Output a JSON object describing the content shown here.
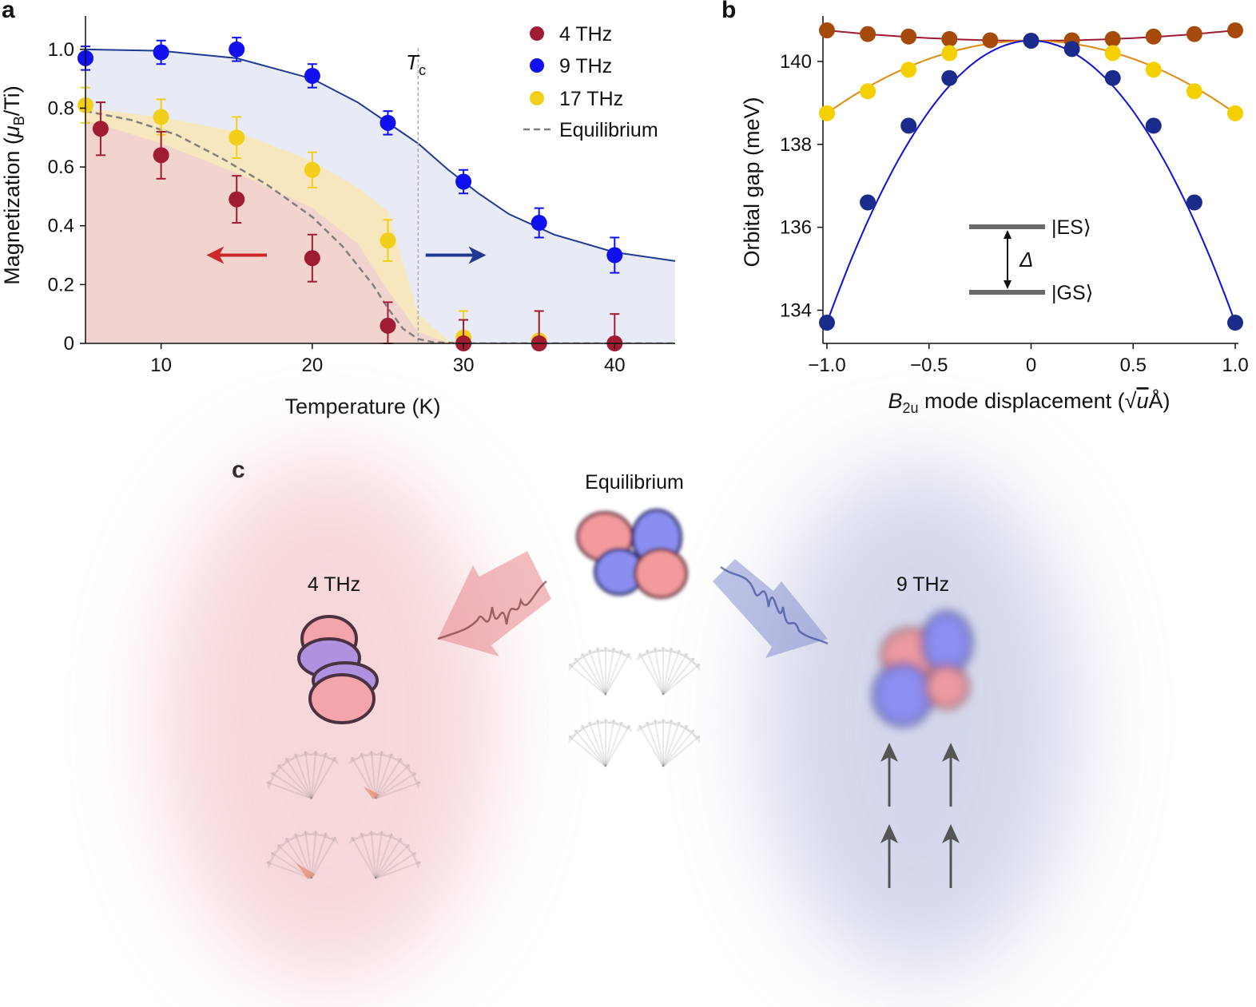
{
  "panels": {
    "a": "a",
    "b": "b",
    "c": "c"
  },
  "chart_data": [
    {
      "type": "scatter",
      "id": "a",
      "xlabel": "Temperature (K)",
      "ylabel_parts": {
        "pre": "Magnetization (",
        "mu": "μ",
        "sub": "B",
        "post": "/Ti)"
      },
      "xlim": [
        5,
        44
      ],
      "ylim": [
        0,
        1.1
      ],
      "xticks": [
        10,
        20,
        30,
        40
      ],
      "yticks": [
        {
          "v": 0,
          "label": "0"
        },
        {
          "v": 0.2,
          "label": "0.2"
        },
        {
          "v": 0.4,
          "label": "0.4"
        },
        {
          "v": 0.6,
          "label": "0.6"
        },
        {
          "v": 0.8,
          "label": "0.8"
        },
        {
          "v": 1.0,
          "label": "1.0"
        }
      ],
      "tc_label": {
        "main": "T",
        "sub": "c"
      },
      "tc_value": 27,
      "series": [
        {
          "name": "4 THz",
          "color": "#a01c32",
          "x": [
            6,
            10,
            15,
            20,
            25,
            30,
            35,
            40
          ],
          "y": [
            0.73,
            0.64,
            0.49,
            0.29,
            0.06,
            0.0,
            0.0,
            0.0
          ],
          "err": [
            0.09,
            0.08,
            0.08,
            0.08,
            0.08,
            0.08,
            0.11,
            0.1
          ]
        },
        {
          "name": "9 THz",
          "color": "#1010ee",
          "x": [
            5,
            10,
            15,
            20,
            25,
            30,
            35,
            40
          ],
          "y": [
            0.97,
            0.99,
            1.0,
            0.91,
            0.75,
            0.55,
            0.41,
            0.3
          ],
          "err": [
            0.04,
            0.04,
            0.04,
            0.04,
            0.04,
            0.04,
            0.05,
            0.06
          ]
        },
        {
          "name": "17 THz",
          "color": "#f2cf1a",
          "x": [
            5,
            10,
            15,
            20,
            25,
            30,
            35
          ],
          "y": [
            0.81,
            0.77,
            0.7,
            0.59,
            0.35,
            0.02,
            0.01
          ],
          "err": [
            0.06,
            0.06,
            0.07,
            0.06,
            0.07,
            0.09,
            0.1
          ]
        },
        {
          "name": "Equilibrium",
          "style": "dashed",
          "color": "#808080",
          "x": [
            5,
            8,
            11,
            14,
            17,
            20,
            22,
            24,
            25,
            26,
            27,
            28,
            30,
            33,
            44
          ],
          "y": [
            0.79,
            0.76,
            0.71,
            0.63,
            0.54,
            0.43,
            0.33,
            0.2,
            0.12,
            0.05,
            0.015,
            0.004,
            0.0,
            0.0,
            0.0
          ]
        }
      ],
      "fit_9thz": {
        "x": [
          5,
          10,
          15,
          20,
          23,
          25,
          27,
          29,
          31,
          33,
          36,
          40,
          44
        ],
        "y": [
          1.0,
          0.995,
          0.97,
          0.9,
          0.82,
          0.75,
          0.68,
          0.59,
          0.51,
          0.44,
          0.37,
          0.31,
          0.28
        ]
      },
      "band_17thz": {
        "x": [
          5,
          10,
          15,
          20,
          23,
          25,
          27,
          29,
          31,
          35,
          44
        ],
        "upper": [
          0.8,
          0.77,
          0.72,
          0.62,
          0.53,
          0.45,
          0.1,
          0.01,
          0.0,
          0.0,
          0.0
        ]
      },
      "band_4thz": {
        "x": [
          5,
          10,
          15,
          20,
          23,
          25,
          27,
          29,
          44
        ],
        "upper": [
          0.76,
          0.68,
          0.58,
          0.46,
          0.34,
          0.18,
          0.04,
          0.0,
          0.0
        ]
      },
      "arrows": [
        {
          "direction": "left",
          "color": "#cc2a2a",
          "x": [
            17,
            13
          ],
          "y": 0.3
        },
        {
          "direction": "right",
          "color": "#1f3a93",
          "x": [
            27.5,
            31.5
          ],
          "y": 0.3
        }
      ]
    },
    {
      "type": "line",
      "id": "b",
      "xlabel_parts": {
        "main": "B",
        "sub": "2u",
        "rest": " mode displacement (",
        "root": "√",
        "u": "u",
        "post": "Å)"
      },
      "ylabel": "Orbital gap (meV)",
      "xlim": [
        -1.0,
        1.0
      ],
      "ylim": [
        133.2,
        141.0
      ],
      "xticks": [
        {
          "v": -1.0,
          "label": "−1.0"
        },
        {
          "v": -0.5,
          "label": "−0.5"
        },
        {
          "v": 0,
          "label": "0"
        },
        {
          "v": 0.5,
          "label": "0.5"
        },
        {
          "v": 1.0,
          "label": "1.0"
        }
      ],
      "yticks": [
        134,
        136,
        138,
        140
      ],
      "series": [
        {
          "name": "4 THz",
          "color": "#a64a0c",
          "line": "#9e1b32",
          "x": [
            -1.0,
            -0.8,
            -0.6,
            -0.4,
            -0.2,
            0,
            0.2,
            0.4,
            0.6,
            0.8,
            1.0
          ],
          "y": [
            140.75,
            140.66,
            140.6,
            140.54,
            140.51,
            140.5,
            140.51,
            140.54,
            140.6,
            140.66,
            140.75
          ]
        },
        {
          "name": "17 THz",
          "color": "#f5d000",
          "line": "#e08a10",
          "x": [
            -1.0,
            -0.8,
            -0.6,
            -0.4,
            0,
            0.4,
            0.6,
            0.8,
            1.0
          ],
          "y": [
            138.75,
            139.28,
            139.8,
            140.2,
            140.5,
            140.2,
            139.8,
            139.28,
            138.75
          ]
        },
        {
          "name": "9 THz",
          "color": "#1a2b8c",
          "line": "#1010dd",
          "x": [
            -1.0,
            -0.8,
            -0.6,
            -0.4,
            0,
            0.2,
            0.4,
            0.6,
            0.8,
            1.0
          ],
          "y": [
            133.7,
            136.6,
            138.45,
            139.6,
            140.5,
            140.3,
            139.6,
            138.45,
            136.6,
            133.7
          ]
        }
      ],
      "inset": {
        "es": "|ES⟩",
        "gs": "|GS⟩",
        "delta": "Δ"
      }
    }
  ],
  "panel_c": {
    "title": "Equilibrium",
    "left_label": "4 THz",
    "right_label": "9 THz"
  }
}
